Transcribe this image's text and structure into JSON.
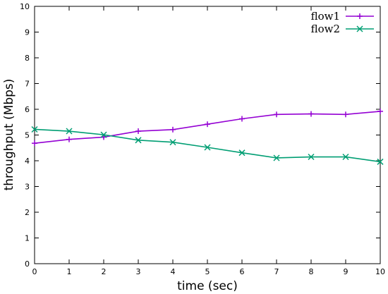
{
  "chart_data": {
    "type": "line",
    "title": "",
    "xlabel": "time (sec)",
    "ylabel": "throughput (Mbps)",
    "xlim": [
      0,
      10
    ],
    "ylim": [
      0,
      10
    ],
    "x_ticks": [
      "0",
      "1",
      "2",
      "3",
      "4",
      "5",
      "6",
      "7",
      "8",
      "9",
      "10"
    ],
    "y_ticks": [
      "0",
      "1",
      "2",
      "3",
      "4",
      "5",
      "6",
      "7",
      "8",
      "9",
      "10"
    ],
    "grid": false,
    "legend_position": "top-right",
    "x": [
      0,
      1,
      2,
      3,
      4,
      5,
      6,
      7,
      8,
      9,
      10
    ],
    "series": [
      {
        "name": "flow1",
        "color": "#9400d3",
        "marker": "plus",
        "values": [
          4.68,
          4.83,
          4.92,
          5.15,
          5.21,
          5.42,
          5.63,
          5.8,
          5.82,
          5.8,
          5.92
        ]
      },
      {
        "name": "flow2",
        "color": "#009e73",
        "marker": "cross",
        "values": [
          5.22,
          5.15,
          5.01,
          4.8,
          4.72,
          4.52,
          4.31,
          4.11,
          4.15,
          4.15,
          3.96
        ]
      }
    ]
  }
}
